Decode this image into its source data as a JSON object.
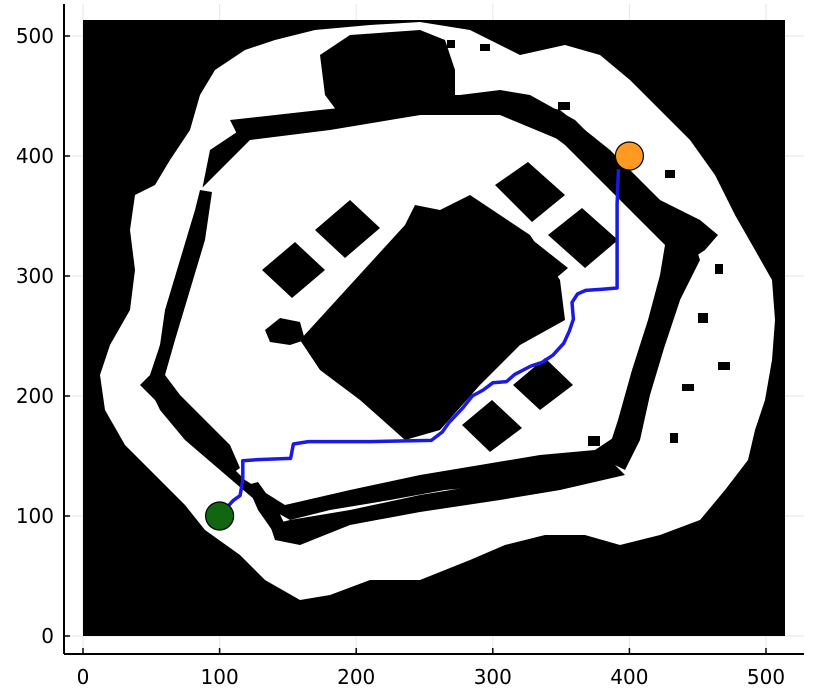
{
  "chart_data": {
    "type": "line",
    "title": "",
    "xlabel": "",
    "ylabel": "",
    "xlim": [
      -13,
      528
    ],
    "ylim": [
      -13,
      526
    ],
    "grid": true,
    "legend": "none",
    "x_ticks": [
      0,
      100,
      200,
      300,
      400,
      500
    ],
    "y_ticks": [
      0,
      100,
      200,
      300,
      400,
      500
    ],
    "x_tick_labels": [
      "0",
      "100",
      "200",
      "300",
      "400",
      "500"
    ],
    "y_tick_labels": [
      "0",
      "100",
      "200",
      "300",
      "400",
      "500"
    ],
    "background_map": {
      "type": "heatmap",
      "colors": {
        "free": "#ffffff",
        "occupied": "#000000"
      },
      "extent": {
        "x": [
          0,
          512
        ],
        "y": [
          0,
          512
        ]
      }
    },
    "series": [
      {
        "color": "#1a1ae6",
        "points": [
          [
            100,
            100
          ],
          [
            106,
            108
          ],
          [
            110,
            113
          ],
          [
            115,
            117
          ],
          [
            117,
            130
          ],
          [
            117,
            146
          ],
          [
            128,
            147
          ],
          [
            152,
            148
          ],
          [
            154,
            160
          ],
          [
            165,
            162
          ],
          [
            210,
            162
          ],
          [
            255,
            163
          ],
          [
            263,
            170
          ],
          [
            268,
            178
          ],
          [
            278,
            190
          ],
          [
            285,
            200
          ],
          [
            293,
            205
          ],
          [
            300,
            211
          ],
          [
            310,
            212
          ],
          [
            316,
            218
          ],
          [
            328,
            225
          ],
          [
            336,
            228
          ],
          [
            344,
            234
          ],
          [
            352,
            244
          ],
          [
            356,
            254
          ],
          [
            359,
            264
          ],
          [
            358,
            278
          ],
          [
            362,
            285
          ],
          [
            368,
            288
          ],
          [
            380,
            289
          ],
          [
            391,
            290
          ],
          [
            391,
            330
          ],
          [
            391,
            360
          ],
          [
            392,
            389
          ]
        ]
      }
    ],
    "markers": [
      {
        "x": 100,
        "y": 100,
        "color": "#116611"
      },
      {
        "x": 400,
        "y": 400,
        "color": "#ff9922"
      }
    ]
  }
}
